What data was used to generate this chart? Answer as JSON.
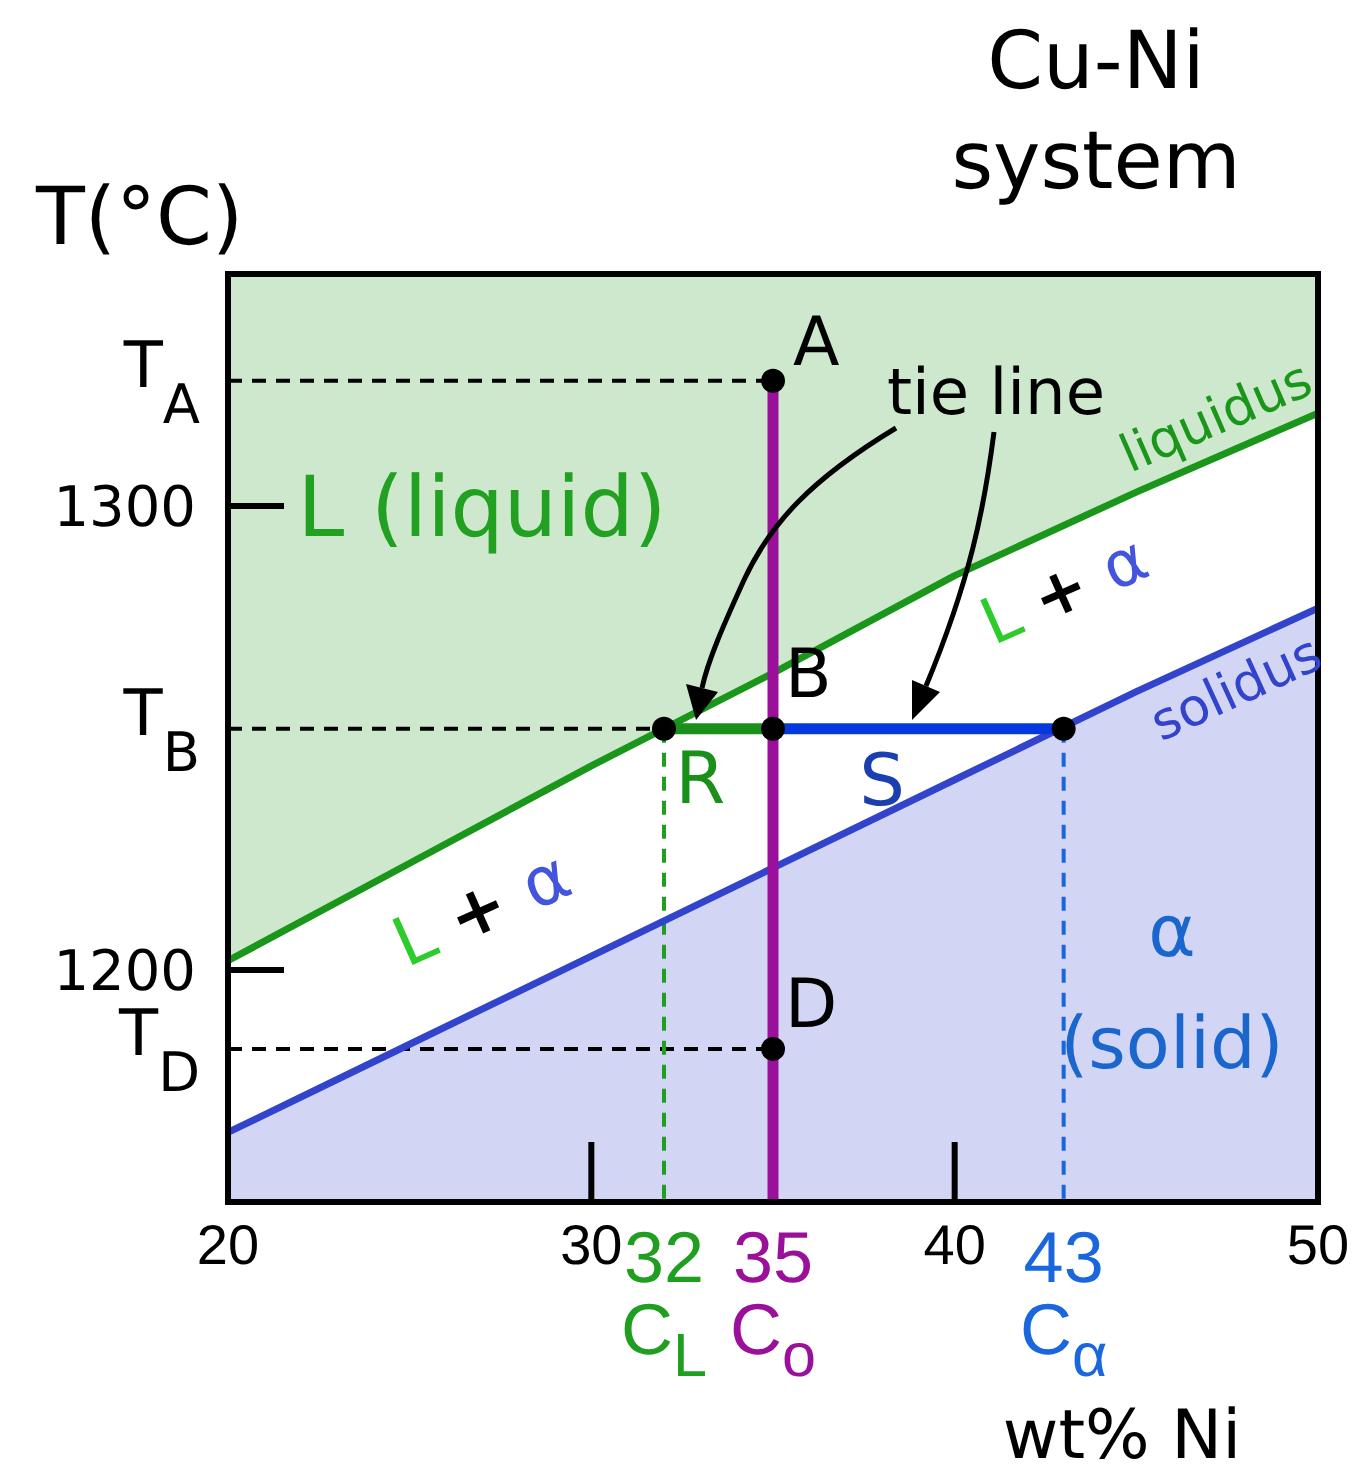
{
  "chart_data": {
    "type": "line",
    "title": "Cu-Ni system",
    "xlabel": "wt% Ni",
    "ylabel": "T(°C)",
    "xlim": [
      20,
      50
    ],
    "xticks": [
      20,
      30,
      {
        "value": 32,
        "label": "32\nC$_{L}$"
      },
      {
        "value": 35,
        "label": "35\nC$_{o}$"
      },
      40,
      {
        "value": 43,
        "label": "43\nC$_{α}$"
      },
      50
    ],
    "ylim": [
      1150,
      1350
    ],
    "yticks": [
      {
        "value": 1183,
        "label": "T$_{D}$"
      },
      1200,
      {
        "value": 1252,
        "label": "T$_{B}$"
      },
      1300,
      {
        "value": 1327,
        "label": "T$_{A}$"
      }
    ],
    "series": [
      {
        "color": "#000000",
        "x": [
          20,
          35
        ],
        "values": [
          1327,
          1327
        ],
        "line_style": "dashed"
      },
      {
        "color": "#000000",
        "x": [
          20,
          32
        ],
        "values": [
          1252,
          1252
        ],
        "line_style": "dashed"
      },
      {
        "color": "#000000",
        "x": [
          20,
          35
        ],
        "values": [
          1183,
          1183
        ],
        "line_style": "dashed"
      },
      {
        "color": "#1f9e1f",
        "x": [
          32,
          32
        ],
        "values": [
          1252,
          1150
        ],
        "line_style": "dashed"
      },
      {
        "color": "#1a66dd",
        "x": [
          43,
          43
        ],
        "values": [
          1252,
          1150
        ],
        "line_style": "dashed"
      },
      {
        "name": "liquidus",
        "color": "#1a961a",
        "x": [
          20,
          25,
          30,
          35,
          40,
          45,
          50
        ],
        "values": [
          1202,
          1223,
          1244,
          1264,
          1285,
          1303,
          1320
        ],
        "lower": [
          1202,
          1223,
          1244,
          1264,
          1285,
          1303,
          1320
        ],
        "upper": [
          1350,
          1350,
          1350,
          1350,
          1350,
          1350,
          1350
        ]
      },
      {
        "name": "solidus",
        "color": "#3344cc",
        "x": [
          20,
          25,
          30,
          35,
          40,
          45,
          50
        ],
        "values": [
          1165,
          1184,
          1203,
          1222,
          1241,
          1260,
          1278
        ],
        "lower": [
          1150,
          1150,
          1150,
          1150,
          1150,
          1150,
          1150
        ],
        "upper": [
          1165,
          1184,
          1203,
          1222,
          1241,
          1260,
          1278
        ]
      },
      {
        "color": "#9b109b",
        "x": [
          35,
          35
        ],
        "values": [
          1327,
          1150
        ]
      },
      {
        "color": "#1a8f1a",
        "x": [
          32,
          35
        ],
        "values": [
          1252,
          1252
        ]
      },
      {
        "color": "#0638e0",
        "x": [
          35,
          43
        ],
        "values": [
          1252,
          1252
        ]
      },
      {
        "type": "scatter",
        "color": "#000000",
        "x": [
          35,
          35,
          35,
          32,
          43
        ],
        "values": [
          1327,
          1252,
          1183,
          1252,
          1252
        ],
        "marker": "circle"
      }
    ],
    "annotations": [
      {
        "text": "A",
        "x": 35,
        "y": 1327
      },
      {
        "text": "B",
        "x": 35,
        "y": 1252
      },
      {
        "text": "D",
        "x": 35,
        "y": 1183
      },
      {
        "text": "R",
        "x": 33,
        "y": 1252
      },
      {
        "text": "S",
        "x": 38,
        "y": 1252
      },
      "tie line",
      "L (liquid)",
      "L + α",
      "L + α",
      "α (solid)"
    ]
  }
}
